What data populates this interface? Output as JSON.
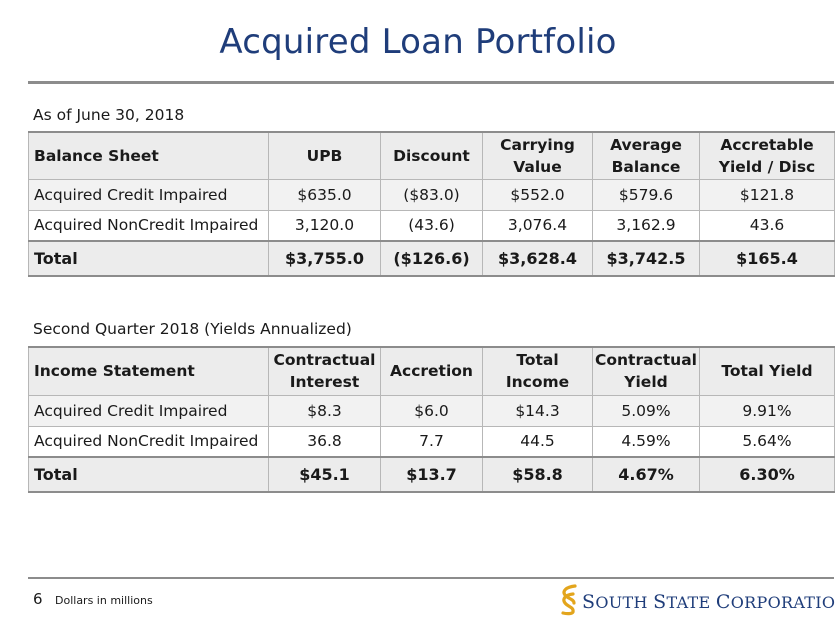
{
  "page": {
    "title": "Acquired Loan Portfolio",
    "page_number": "6",
    "footnote": "Dollars in millions"
  },
  "logo": {
    "name": "South State Corporation logo",
    "text_parts": [
      "S",
      "OUTH ",
      "S",
      "TATE ",
      "C",
      "ORPORATION"
    ],
    "colors": {
      "mark_gold": "#e3a51c",
      "text_navy": "#1f3d7a"
    }
  },
  "balance_sheet": {
    "caption": "As of June 30, 2018",
    "headers": [
      {
        "line1": "Balance Sheet",
        "line2": ""
      },
      {
        "line1": "UPB",
        "line2": ""
      },
      {
        "line1": "Discount",
        "line2": ""
      },
      {
        "line1": "Carrying",
        "line2": "Value"
      },
      {
        "line1": "Average",
        "line2": "Balance"
      },
      {
        "line1": "Accretable",
        "line2": "Yield / Disc"
      }
    ],
    "rows": [
      [
        "Acquired Credit Impaired",
        "$635.0",
        "($83.0)",
        "$552.0",
        "$579.6",
        "$121.8"
      ],
      [
        "Acquired NonCredit Impaired",
        "3,120.0",
        "(43.6)",
        "3,076.4",
        "3,162.9",
        "43.6"
      ]
    ],
    "total": [
      "Total",
      "$3,755.0",
      "($126.6)",
      "$3,628.4",
      "$3,742.5",
      "$165.4"
    ]
  },
  "income_statement": {
    "caption": "Second Quarter 2018 (Yields Annualized)",
    "headers": [
      {
        "line1": "Income Statement",
        "line2": ""
      },
      {
        "line1": "Contractual",
        "line2": "Interest"
      },
      {
        "line1": "Accretion",
        "line2": ""
      },
      {
        "line1": "Total",
        "line2": "Income"
      },
      {
        "line1": "Contractual",
        "line2": "Yield"
      },
      {
        "line1": "Total Yield",
        "line2": ""
      }
    ],
    "rows": [
      [
        "Acquired Credit Impaired",
        "$8.3",
        "$6.0",
        "$14.3",
        "5.09%",
        "9.91%"
      ],
      [
        "Acquired NonCredit Impaired",
        "36.8",
        "7.7",
        "44.5",
        "4.59%",
        "5.64%"
      ]
    ],
    "total": [
      "Total",
      "$45.1",
      "$13.7",
      "$58.8",
      "4.67%",
      "6.30%"
    ]
  }
}
